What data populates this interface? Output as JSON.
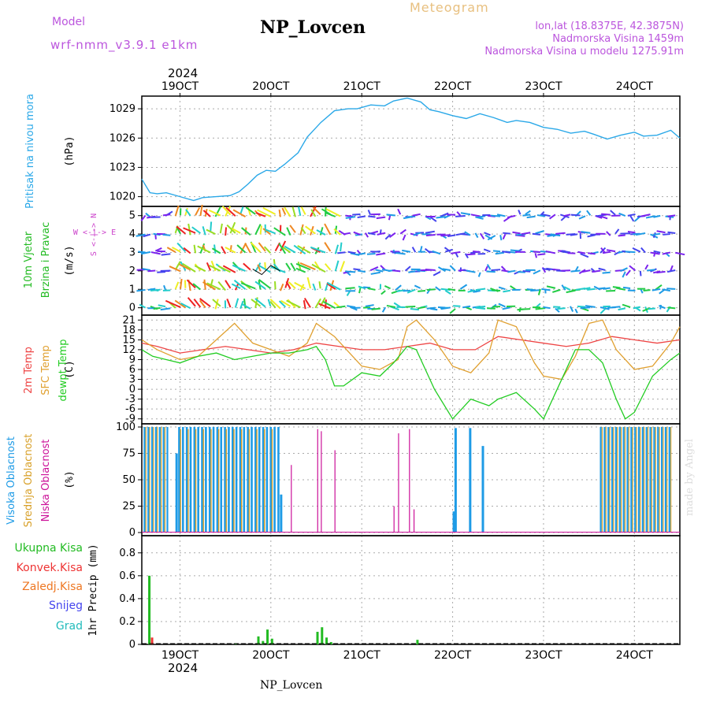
{
  "header": {
    "model_label": "Model",
    "model_name": "wrf-nmm_v3.9.1 e1km",
    "station": "NP_Lovcen",
    "meteogram_label": "Meteogram",
    "location": "lon,lat (18.8375E, 42.3875N)",
    "altitude": "Nadmorska Visina 1459m",
    "model_altitude": "Nadmorska Visina u modelu 1275.91m",
    "year_top": "2024",
    "year_bottom": "2024",
    "footer_station": "NP_Lovcen",
    "credit": "made by Angel"
  },
  "colors": {
    "pressure": "#2aa8e8",
    "temp2m": "#ee4444",
    "sfc_temp": "#e0a030",
    "dewpoint": "#22cc22",
    "high_cloud": "#1e9be6",
    "mid_cloud": "#d8a028",
    "low_cloud": "#cc1199",
    "total_precip": "#22bb22",
    "conv_precip": "#ee3333",
    "frozen_precip": "#ee7722",
    "snow": "#4444ee",
    "graupel": "#22bbbb",
    "wind_label": "#cc44cc"
  },
  "chart_data": [
    {
      "panel": "pressure",
      "type": "line",
      "x_unit": "day of October 2024",
      "x_ticks": [
        "19OCT",
        "20OCT",
        "21OCT",
        "22OCT",
        "23OCT",
        "24OCT"
      ],
      "xlim": [
        18.58,
        24.5
      ],
      "ylabel_side": "Pritisak na nivou mora",
      "ylabel": "(hPa)",
      "yticks": [
        1020,
        1023,
        1026,
        1029
      ],
      "ylim": [
        1019,
        1030.3
      ],
      "series": [
        {
          "values_x": [
            18.58,
            18.67,
            18.75,
            18.85,
            19.0,
            19.15,
            19.25,
            19.4,
            19.55,
            19.65,
            19.75,
            19.85,
            19.95,
            20.05,
            20.15,
            20.3,
            20.4,
            20.55,
            20.7,
            20.85,
            20.95,
            21.1,
            21.25,
            21.35,
            21.5,
            21.65,
            21.75,
            21.85,
            22.0,
            22.15,
            22.3,
            22.45,
            22.6,
            22.7,
            22.85,
            23.0,
            23.15,
            23.3,
            23.45,
            23.55,
            23.7,
            23.85,
            24.0,
            24.1,
            24.25,
            24.4,
            24.5
          ],
          "values_y": [
            1021.8,
            1020.4,
            1020.3,
            1020.4,
            1020.0,
            1019.6,
            1019.9,
            1020.0,
            1020.1,
            1020.5,
            1021.3,
            1022.2,
            1022.7,
            1022.6,
            1023.3,
            1024.5,
            1026.1,
            1027.6,
            1028.8,
            1029.0,
            1029.0,
            1029.4,
            1029.3,
            1029.8,
            1030.1,
            1029.7,
            1028.9,
            1028.7,
            1028.3,
            1028.0,
            1028.5,
            1028.1,
            1027.6,
            1027.8,
            1027.6,
            1027.1,
            1026.9,
            1026.5,
            1026.7,
            1026.4,
            1025.9,
            1026.3,
            1026.6,
            1026.2,
            1026.3,
            1026.8,
            1026.0
          ]
        }
      ]
    },
    {
      "panel": "wind",
      "type": "line",
      "ylabel_side": [
        "10m Vjetar",
        "Brzina i Pravac"
      ],
      "ylabel": "(m/s)",
      "compass_label": "W <-|-> E",
      "compass_vertical": "S <-|-> N",
      "yticks": [
        0,
        1,
        2,
        3,
        4,
        5
      ],
      "ylim": [
        -0.4,
        5.5
      ],
      "series": [
        {
          "name": "wind speed",
          "values_x": [
            19.8,
            19.9,
            20.0,
            20.1
          ],
          "values_y": [
            2.1,
            1.8,
            2.3,
            2.0
          ]
        }
      ]
    },
    {
      "panel": "temperature",
      "type": "line",
      "ylabel_side": [
        "2m Temp",
        "SFC Temp",
        "dewpt Temp"
      ],
      "ylabel": "(C)",
      "yticks": [
        -9,
        -6,
        -3,
        0,
        3,
        6,
        9,
        12,
        15,
        18,
        21
      ],
      "ylim": [
        -10.5,
        22.5
      ],
      "series": [
        {
          "name": "2m Temp",
          "values_x": [
            18.58,
            18.75,
            19.0,
            19.25,
            19.5,
            19.75,
            20.0,
            20.25,
            20.5,
            20.75,
            21.0,
            21.25,
            21.5,
            21.75,
            22.0,
            22.25,
            22.5,
            22.75,
            23.0,
            23.25,
            23.5,
            23.75,
            24.0,
            24.25,
            24.5
          ],
          "values_y": [
            14,
            13,
            11,
            12,
            13,
            12,
            11,
            12,
            14,
            13,
            12,
            12,
            13,
            14,
            12,
            12,
            16,
            15,
            14,
            13,
            14,
            16,
            15,
            14,
            15
          ]
        },
        {
          "name": "SFC Temp",
          "values_x": [
            18.58,
            18.75,
            19.0,
            19.2,
            19.4,
            19.6,
            19.8,
            20.0,
            20.2,
            20.4,
            20.5,
            20.7,
            20.9,
            21.0,
            21.2,
            21.4,
            21.5,
            21.6,
            21.8,
            22.0,
            22.2,
            22.4,
            22.5,
            22.7,
            22.9,
            23.0,
            23.2,
            23.35,
            23.5,
            23.65,
            23.8,
            24.0,
            24.2,
            24.4,
            24.5
          ],
          "values_y": [
            15,
            12,
            9,
            10,
            15,
            20,
            14,
            12,
            10,
            14,
            20,
            16,
            10,
            7,
            6,
            9,
            19,
            21,
            15,
            7,
            5,
            11,
            21,
            19,
            8,
            4,
            3,
            10,
            20,
            21,
            12,
            6,
            7,
            14,
            19
          ]
        },
        {
          "name": "dewpt Temp",
          "values_x": [
            18.58,
            18.7,
            18.85,
            19.0,
            19.2,
            19.4,
            19.6,
            19.8,
            20.0,
            20.2,
            20.4,
            20.5,
            20.6,
            20.7,
            20.8,
            21.0,
            21.2,
            21.35,
            21.5,
            21.6,
            21.8,
            22.0,
            22.2,
            22.4,
            22.5,
            22.7,
            22.9,
            23.0,
            23.2,
            23.35,
            23.5,
            23.65,
            23.8,
            23.9,
            24.0,
            24.2,
            24.4,
            24.5
          ],
          "values_y": [
            12,
            10,
            9,
            8,
            10,
            11,
            9,
            10,
            11,
            11,
            12,
            13,
            9,
            1,
            1,
            5,
            4,
            8,
            13,
            12,
            0,
            -9,
            -3,
            -5,
            -3,
            -1,
            -6,
            -9,
            3,
            12,
            12,
            8,
            -3,
            -9,
            -7,
            4,
            9,
            11
          ]
        }
      ]
    },
    {
      "panel": "cloud",
      "type": "bar",
      "ylabel_side": [
        "Visoka Oblacnost",
        "Srednja Oblacnost",
        "Niska Oblacnost"
      ],
      "ylabel": "(%)",
      "yticks": [
        0,
        25,
        50,
        75,
        100
      ],
      "ylim": [
        -3,
        103
      ]
    },
    {
      "panel": "precipitation",
      "type": "bar",
      "ylabel": "1hr Precip (mm)",
      "yticks": [
        0,
        0.2,
        0.4,
        0.6,
        0.8
      ],
      "ylim": [
        0,
        0.95
      ],
      "legend": [
        "Ukupna Kisa",
        "Konvek.Kisa",
        "Zaledj.Kisa",
        "Snijeg",
        "Grad"
      ],
      "series": [
        {
          "name": "Ukupna Kisa",
          "values_x": [
            18.65,
            19.6,
            19.85,
            19.9,
            19.95,
            20.0,
            20.5,
            20.55,
            20.6,
            20.65,
            21.6
          ],
          "values_y": [
            0.6,
            0.01,
            0.07,
            0.03,
            0.13,
            0.05,
            0.11,
            0.15,
            0.06,
            0.02,
            0.04
          ]
        },
        {
          "name": "Konvek.Kisa",
          "values_x": [
            18.68
          ],
          "values_y": [
            0.06
          ]
        }
      ]
    }
  ]
}
